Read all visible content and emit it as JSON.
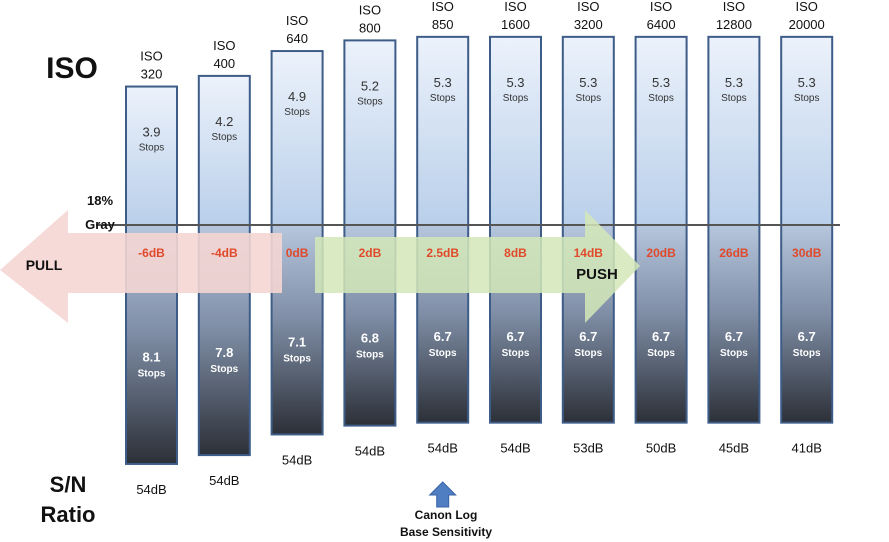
{
  "chart_data": {
    "type": "bar",
    "title": "ISO",
    "y_left_label": "18% Gray",
    "bottom_label_line1": "S/N",
    "bottom_label_line2": "Ratio",
    "iso_prefix": "ISO",
    "stops_word": "Stops",
    "categories": [
      "320",
      "400",
      "640",
      "800",
      "850",
      "1600",
      "3200",
      "6400",
      "12800",
      "20000"
    ],
    "series": [
      {
        "name": "Stops above 18% Gray",
        "values": [
          3.9,
          4.2,
          4.9,
          5.2,
          5.3,
          5.3,
          5.3,
          5.3,
          5.3,
          5.3
        ]
      },
      {
        "name": "Stops below 18% Gray",
        "values": [
          8.1,
          7.8,
          7.1,
          6.8,
          6.7,
          6.7,
          6.7,
          6.7,
          6.7,
          6.7
        ]
      }
    ],
    "gain_labels": [
      "-6dB",
      "-4dB",
      "0dB",
      "2dB",
      "2.5dB",
      "8dB",
      "14dB",
      "20dB",
      "26dB",
      "30dB"
    ],
    "sn_ratio": [
      "54dB",
      "54dB",
      "54dB",
      "54dB",
      "54dB",
      "54dB",
      "53dB",
      "50dB",
      "45dB",
      "41dB"
    ],
    "pull_label": "PULL",
    "push_label": "PUSH",
    "annotation_line1": "Canon Log",
    "annotation_line2": "Base Sensitivity",
    "annotation_target": "850",
    "colors": {
      "gain": "#e04a2a",
      "bar_stroke": "#3e5c88",
      "pull_arrow": "#f4d6d3",
      "push_arrow": "#d4e8b8",
      "marker_arrow": "#4f7ec2"
    }
  }
}
